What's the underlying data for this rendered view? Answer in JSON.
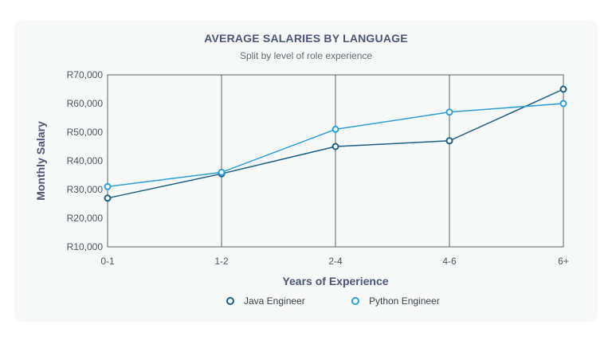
{
  "chart_data": {
    "type": "line",
    "title": "AVERAGE SALARIES BY LANGUAGE",
    "subtitle": "Split by level of role experience",
    "xlabel": "Years of Experience",
    "ylabel": "Monthly Salary",
    "categories": [
      "0-1",
      "1-2",
      "2-4",
      "4-6",
      "6+"
    ],
    "ylim": [
      10000,
      70000
    ],
    "yticks": [
      {
        "value": 10000,
        "label": "R10,000"
      },
      {
        "value": 20000,
        "label": "R20,000"
      },
      {
        "value": 30000,
        "label": "R30,000"
      },
      {
        "value": 40000,
        "label": "R40,000"
      },
      {
        "value": 50000,
        "label": "R50,000"
      },
      {
        "value": 60000,
        "label": "R60,000"
      },
      {
        "value": 70000,
        "label": "R70,000"
      }
    ],
    "grid": {
      "vertical": true,
      "horizontal": false
    },
    "legend_position": "bottom-center",
    "series": [
      {
        "name": "Java Engineer",
        "color": "#1a5f86",
        "values": [
          27000,
          35500,
          45000,
          47000,
          65000
        ]
      },
      {
        "name": "Python Engineer",
        "color": "#2b9fd8",
        "values": [
          31000,
          36000,
          51000,
          57000,
          60000
        ]
      }
    ]
  }
}
